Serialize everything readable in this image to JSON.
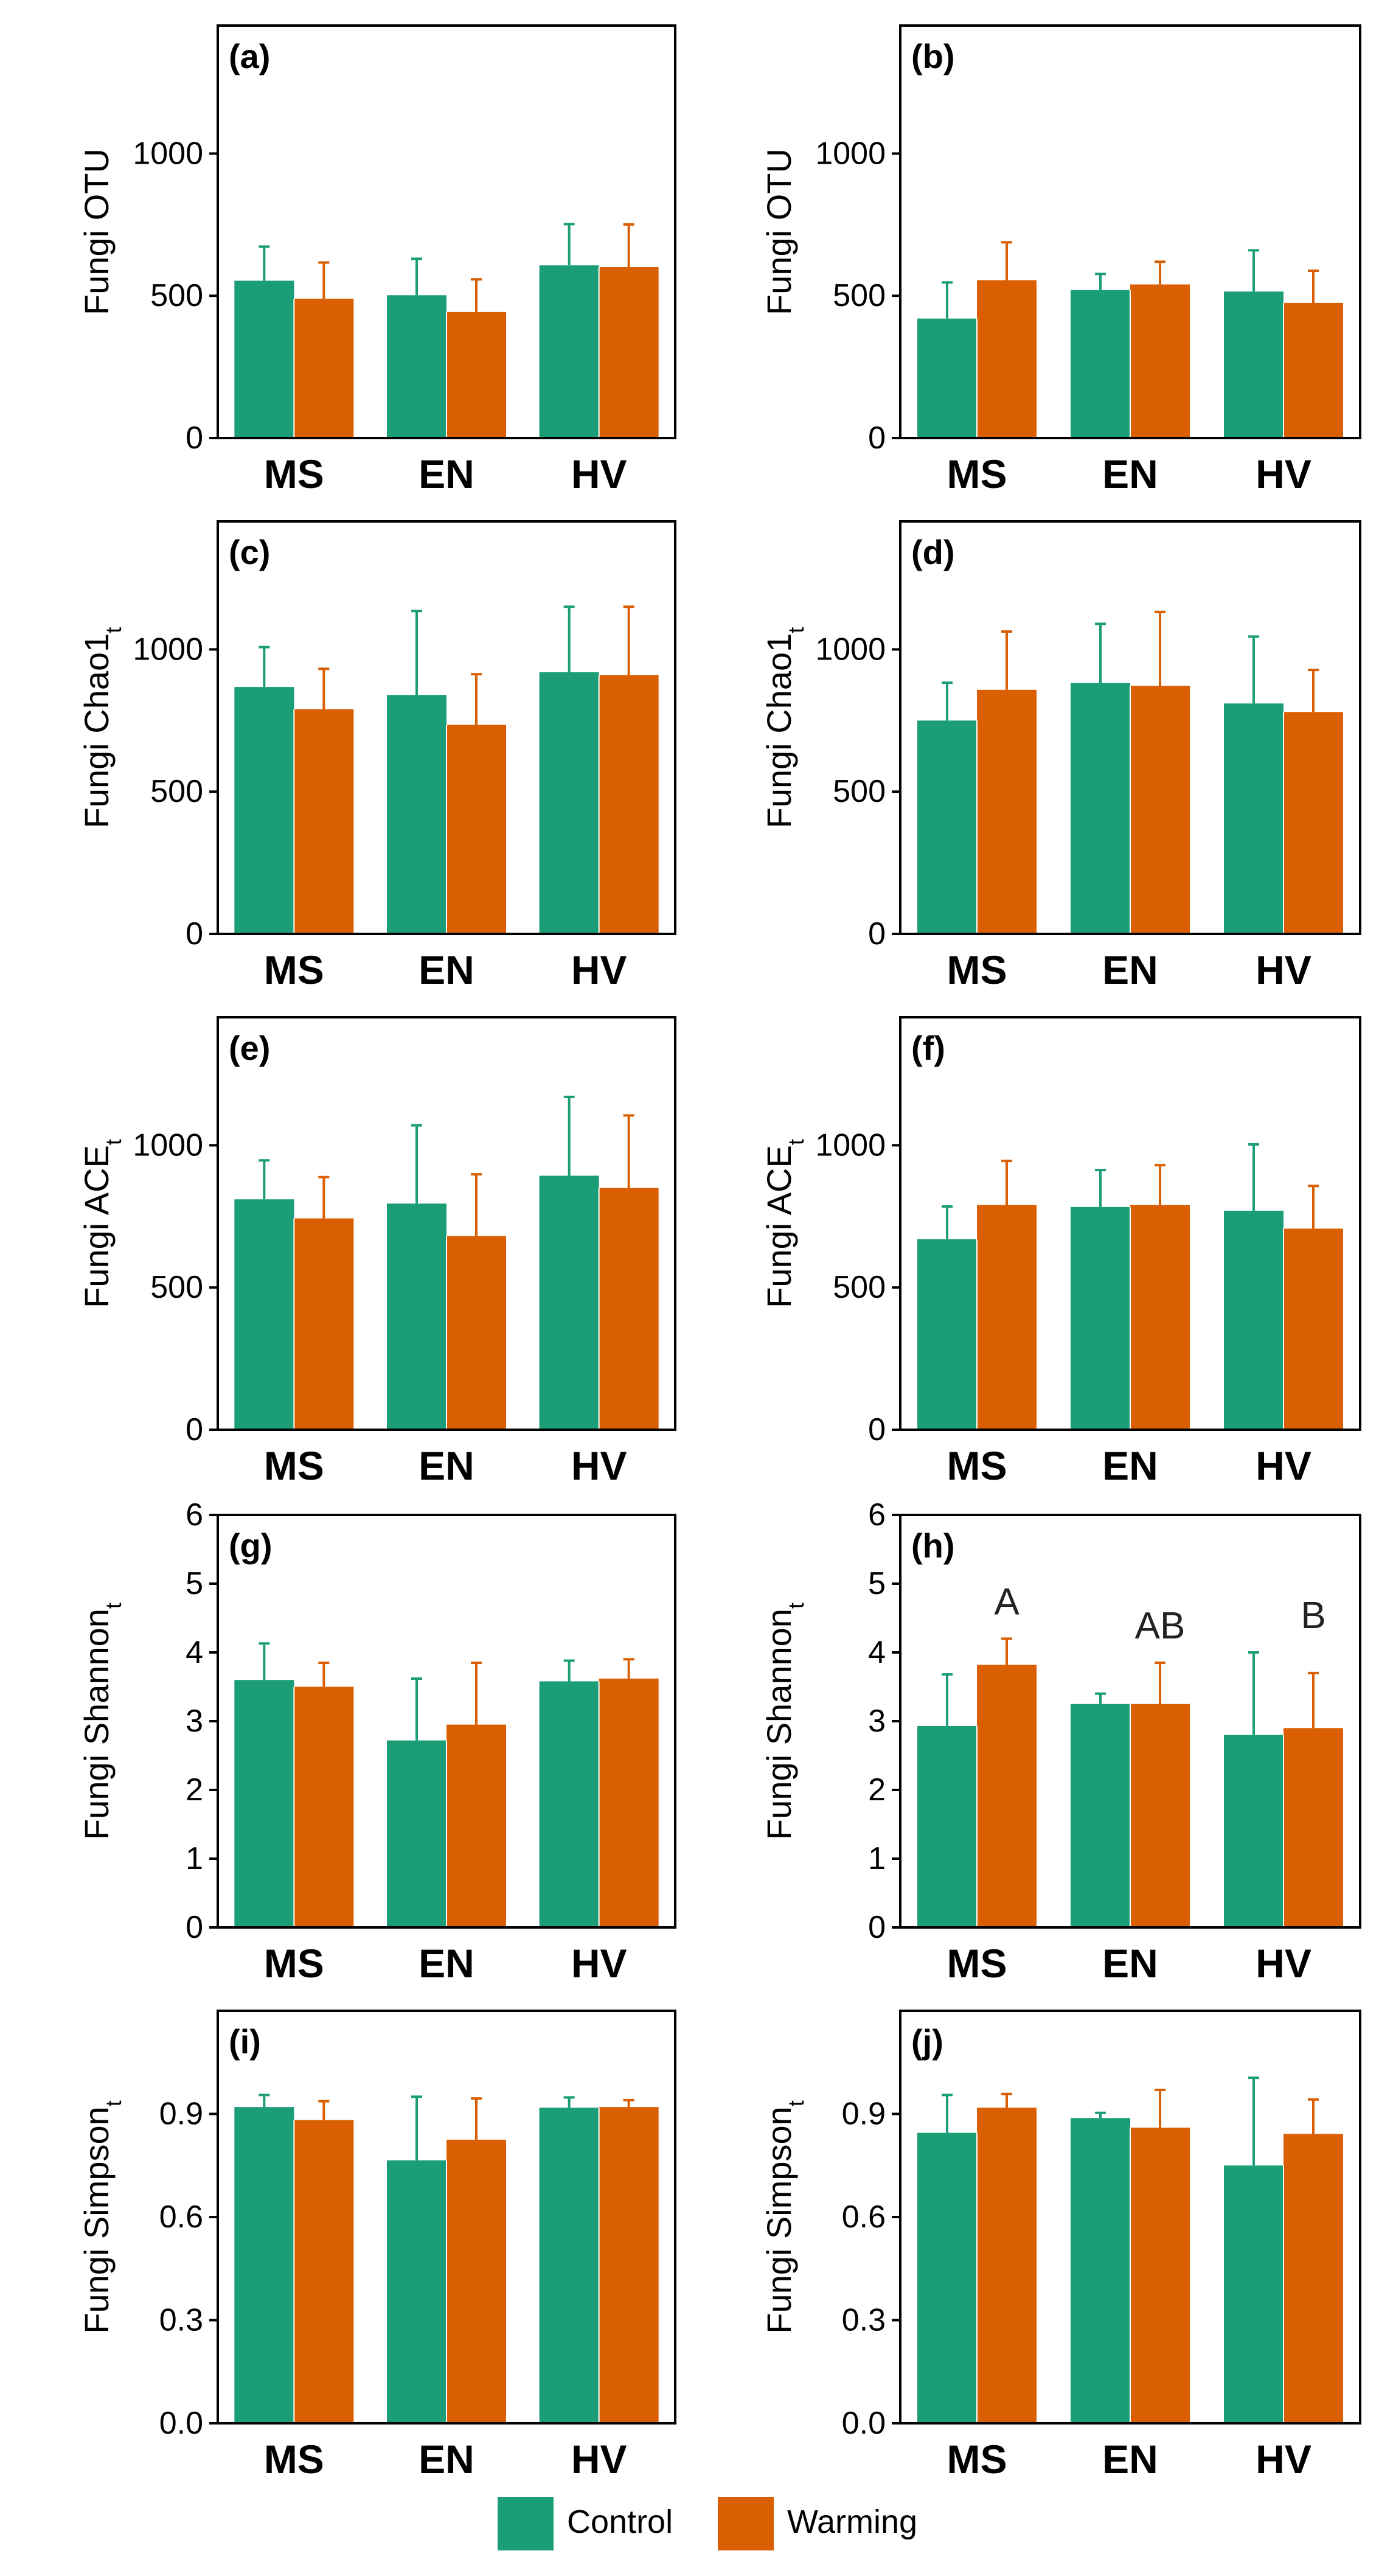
{
  "colors": {
    "control": "#1b9e77",
    "warming": "#d95f02",
    "axis": "#000000"
  },
  "legend": {
    "control": "Control",
    "warming": "Warming"
  },
  "chart_data": [
    {
      "type": "bar",
      "id": "a",
      "panel_label": "(a)",
      "ylabel_main": "Fungi OTU",
      "ylabel_sub": "",
      "categories": [
        "MS",
        "EN",
        "HV"
      ],
      "ylim": [
        0,
        1450
      ],
      "yticks": [
        0,
        500,
        1000
      ],
      "series": [
        {
          "name": "Control",
          "values": [
            553,
            502,
            607
          ],
          "errors": [
            120,
            128,
            145
          ]
        },
        {
          "name": "Warming",
          "values": [
            490,
            443,
            601
          ],
          "errors": [
            127,
            115,
            150
          ]
        }
      ]
    },
    {
      "type": "bar",
      "id": "b",
      "panel_label": "(b)",
      "ylabel_main": "Fungi OTU",
      "ylabel_sub": "",
      "categories": [
        "MS",
        "EN",
        "HV"
      ],
      "ylim": [
        0,
        1450
      ],
      "yticks": [
        0,
        500,
        1000
      ],
      "series": [
        {
          "name": "Control",
          "values": [
            420,
            520,
            515
          ],
          "errors": [
            127,
            57,
            145
          ]
        },
        {
          "name": "Warming",
          "values": [
            555,
            540,
            475
          ],
          "errors": [
            133,
            80,
            113
          ]
        }
      ]
    },
    {
      "type": "bar",
      "id": "c",
      "panel_label": "(c)",
      "ylabel_main": "Fungi Chao1",
      "ylabel_sub": "t",
      "categories": [
        "MS",
        "EN",
        "HV"
      ],
      "ylim": [
        0,
        1450
      ],
      "yticks": [
        0,
        500,
        1000
      ],
      "series": [
        {
          "name": "Control",
          "values": [
            868,
            840,
            920
          ],
          "errors": [
            140,
            295,
            230
          ]
        },
        {
          "name": "Warming",
          "values": [
            790,
            735,
            910
          ],
          "errors": [
            142,
            178,
            240
          ]
        }
      ]
    },
    {
      "type": "bar",
      "id": "d",
      "panel_label": "(d)",
      "ylabel_main": "Fungi Chao1",
      "ylabel_sub": "t",
      "categories": [
        "MS",
        "EN",
        "HV"
      ],
      "ylim": [
        0,
        1450
      ],
      "yticks": [
        0,
        500,
        1000
      ],
      "series": [
        {
          "name": "Control",
          "values": [
            750,
            882,
            810
          ],
          "errors": [
            133,
            208,
            235
          ]
        },
        {
          "name": "Warming",
          "values": [
            858,
            872,
            780
          ],
          "errors": [
            205,
            260,
            148
          ]
        }
      ]
    },
    {
      "type": "bar",
      "id": "e",
      "panel_label": "(e)",
      "ylabel_main": "Fungi ACE",
      "ylabel_sub": "t",
      "categories": [
        "MS",
        "EN",
        "HV"
      ],
      "ylim": [
        0,
        1450
      ],
      "yticks": [
        0,
        500,
        1000
      ],
      "series": [
        {
          "name": "Control",
          "values": [
            810,
            795,
            893
          ],
          "errors": [
            137,
            275,
            277
          ]
        },
        {
          "name": "Warming",
          "values": [
            743,
            681,
            850
          ],
          "errors": [
            145,
            217,
            255
          ]
        }
      ]
    },
    {
      "type": "bar",
      "id": "f",
      "panel_label": "(f)",
      "ylabel_main": "Fungi ACE",
      "ylabel_sub": "t",
      "categories": [
        "MS",
        "EN",
        "HV"
      ],
      "ylim": [
        0,
        1450
      ],
      "yticks": [
        0,
        500,
        1000
      ],
      "series": [
        {
          "name": "Control",
          "values": [
            670,
            783,
            770
          ],
          "errors": [
            115,
            130,
            233
          ]
        },
        {
          "name": "Warming",
          "values": [
            790,
            790,
            707
          ],
          "errors": [
            155,
            140,
            150
          ]
        }
      ]
    },
    {
      "type": "bar",
      "id": "g",
      "panel_label": "(g)",
      "ylabel_main": "Fungi Shannon",
      "ylabel_sub": "t",
      "categories": [
        "MS",
        "EN",
        "HV"
      ],
      "ylim": [
        0,
        6
      ],
      "yticks": [
        0,
        1,
        2,
        3,
        4,
        5,
        6
      ],
      "series": [
        {
          "name": "Control",
          "values": [
            3.6,
            2.72,
            3.58
          ],
          "errors": [
            0.53,
            0.9,
            0.3
          ]
        },
        {
          "name": "Warming",
          "values": [
            3.5,
            2.95,
            3.62
          ],
          "errors": [
            0.35,
            0.9,
            0.28
          ]
        }
      ]
    },
    {
      "type": "bar",
      "id": "h",
      "panel_label": "(h)",
      "ylabel_main": "Fungi Shannon",
      "ylabel_sub": "t",
      "categories": [
        "MS",
        "EN",
        "HV"
      ],
      "ylim": [
        0,
        6
      ],
      "yticks": [
        0,
        1,
        2,
        3,
        4,
        5,
        6
      ],
      "annotations": [
        "A",
        "AB",
        "B"
      ],
      "series": [
        {
          "name": "Control",
          "values": [
            2.93,
            3.25,
            2.8
          ],
          "errors": [
            0.75,
            0.15,
            1.2
          ]
        },
        {
          "name": "Warming",
          "values": [
            3.82,
            3.25,
            2.9
          ],
          "errors": [
            0.38,
            0.6,
            0.8
          ]
        }
      ]
    },
    {
      "type": "bar",
      "id": "i",
      "panel_label": "(i)",
      "ylabel_main": "Fungi Simpson",
      "ylabel_sub": "t",
      "categories": [
        "MS",
        "EN",
        "HV"
      ],
      "ylim": [
        0,
        1.2
      ],
      "yticks": [
        0.0,
        0.3,
        0.6,
        0.9
      ],
      "ytick_labels": [
        "0.0",
        "0.3",
        "0.6",
        "0.9"
      ],
      "series": [
        {
          "name": "Control",
          "values": [
            0.92,
            0.765,
            0.918
          ],
          "errors": [
            0.035,
            0.185,
            0.03
          ]
        },
        {
          "name": "Warming",
          "values": [
            0.882,
            0.825,
            0.92
          ],
          "errors": [
            0.055,
            0.12,
            0.02
          ]
        }
      ]
    },
    {
      "type": "bar",
      "id": "j",
      "panel_label": "(j)",
      "ylabel_main": "Fungi Simpson",
      "ylabel_sub": "t",
      "categories": [
        "MS",
        "EN",
        "HV"
      ],
      "ylim": [
        0,
        1.2
      ],
      "yticks": [
        0.0,
        0.3,
        0.6,
        0.9
      ],
      "ytick_labels": [
        "0.0",
        "0.3",
        "0.6",
        "0.9"
      ],
      "series": [
        {
          "name": "Control",
          "values": [
            0.845,
            0.888,
            0.75
          ],
          "errors": [
            0.11,
            0.015,
            0.255
          ]
        },
        {
          "name": "Warming",
          "values": [
            0.918,
            0.86,
            0.842
          ],
          "errors": [
            0.04,
            0.11,
            0.1
          ]
        }
      ]
    }
  ]
}
